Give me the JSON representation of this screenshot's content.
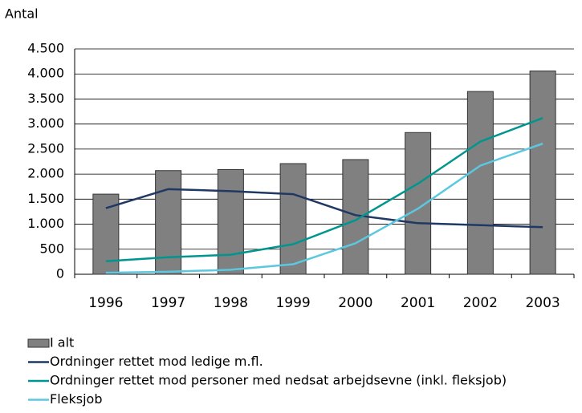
{
  "chart_data": {
    "type": "bar",
    "y_label": "Antal",
    "categories": [
      "1996",
      "1997",
      "1998",
      "1999",
      "2000",
      "2001",
      "2002",
      "2003"
    ],
    "series": [
      {
        "name": "I alt",
        "type": "bar",
        "color": "#808080",
        "values": [
          1600,
          2070,
          2090,
          2210,
          2290,
          2830,
          3650,
          4060
        ]
      },
      {
        "name": "Ordninger rettet mod ledige m.fl.",
        "type": "line",
        "color": "#1f3864",
        "values": [
          1320,
          1700,
          1660,
          1600,
          1180,
          1020,
          980,
          940
        ]
      },
      {
        "name": "Ordninger rettet mod personer med nedsat arbejdsevne (inkl. fleksjob)",
        "type": "line",
        "color": "#00968f",
        "values": [
          260,
          340,
          390,
          600,
          1080,
          1810,
          2650,
          3120
        ]
      },
      {
        "name": "Fleksjob",
        "type": "line",
        "color": "#5bc8e0",
        "values": [
          30,
          50,
          90,
          200,
          620,
          1310,
          2170,
          2610
        ]
      }
    ],
    "ylim": [
      0,
      4500
    ],
    "yticks": [
      0,
      500,
      {
        "value": 1000,
        "label": "1.000"
      },
      {
        "value": 1500,
        "label": "1.500"
      },
      {
        "value": 2000,
        "label": "2.000"
      },
      {
        "value": 2500,
        "label": "2.500"
      },
      {
        "value": 3000,
        "label": "3.000"
      },
      {
        "value": 3500,
        "label": "3.500"
      },
      {
        "value": 4000,
        "label": "4.000"
      },
      {
        "value": 4500,
        "label": "4.500"
      }
    ],
    "grid": true
  }
}
